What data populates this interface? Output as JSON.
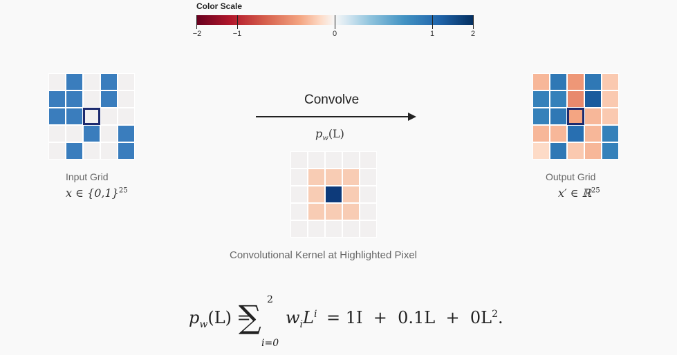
{
  "color_scale": {
    "title": "Color Scale",
    "ticks": [
      "−2",
      "−1",
      "0",
      "1",
      "2"
    ]
  },
  "input_grid": {
    "caption": "Input Grid",
    "math": "x ∈ {0,1}",
    "math_sup": "25",
    "cells": [
      [
        0,
        1,
        0,
        1,
        0
      ],
      [
        1,
        1,
        0,
        1,
        0
      ],
      [
        1,
        1,
        0,
        0,
        0
      ],
      [
        0,
        0,
        1,
        0,
        1
      ],
      [
        0,
        1,
        0,
        0,
        1
      ]
    ],
    "highlight": [
      2,
      2
    ]
  },
  "arrow": {
    "label": "Convolve",
    "formula": "p",
    "formula_sub": "w",
    "formula_tail": "(L)"
  },
  "kernel": {
    "caption": "Convolutional Kernel at Highlighted Pixel",
    "cells": [
      [
        0,
        0,
        0,
        0,
        0
      ],
      [
        0,
        0.1,
        0.1,
        0.1,
        0
      ],
      [
        0,
        0.1,
        1.0,
        0.1,
        0
      ],
      [
        0,
        0.1,
        0.1,
        0.1,
        0
      ],
      [
        0,
        0,
        0,
        0,
        0
      ]
    ]
  },
  "output_grid": {
    "caption": "Output Grid",
    "math": "x′ ∈ ℝ",
    "math_sup": "25",
    "cells": [
      [
        -0.4,
        1.3,
        -0.6,
        1.3,
        -0.3
      ],
      [
        1.2,
        1.2,
        -0.7,
        1.6,
        -0.3
      ],
      [
        1.2,
        1.3,
        -0.5,
        -0.4,
        -0.3
      ],
      [
        -0.4,
        -0.4,
        1.4,
        -0.4,
        1.2
      ],
      [
        -0.2,
        1.3,
        -0.3,
        -0.4,
        1.2
      ]
    ],
    "highlight": [
      2,
      2
    ]
  },
  "equation": {
    "lhs": "p",
    "lhs_sub": "w",
    "lhs_tail": "(L) =",
    "sum_top": "2",
    "sum_bottom": "i=0",
    "body": "w",
    "body_sub": "i",
    "body_L": "L",
    "body_sup": "i",
    "rhs": "= 1I  +  0.1L  +  0L",
    "rhs_sup": "2",
    "rhs_end": "."
  },
  "colors": {
    "neutral": "#f2f0f0",
    "dark_outline": "#1c2a6e"
  }
}
